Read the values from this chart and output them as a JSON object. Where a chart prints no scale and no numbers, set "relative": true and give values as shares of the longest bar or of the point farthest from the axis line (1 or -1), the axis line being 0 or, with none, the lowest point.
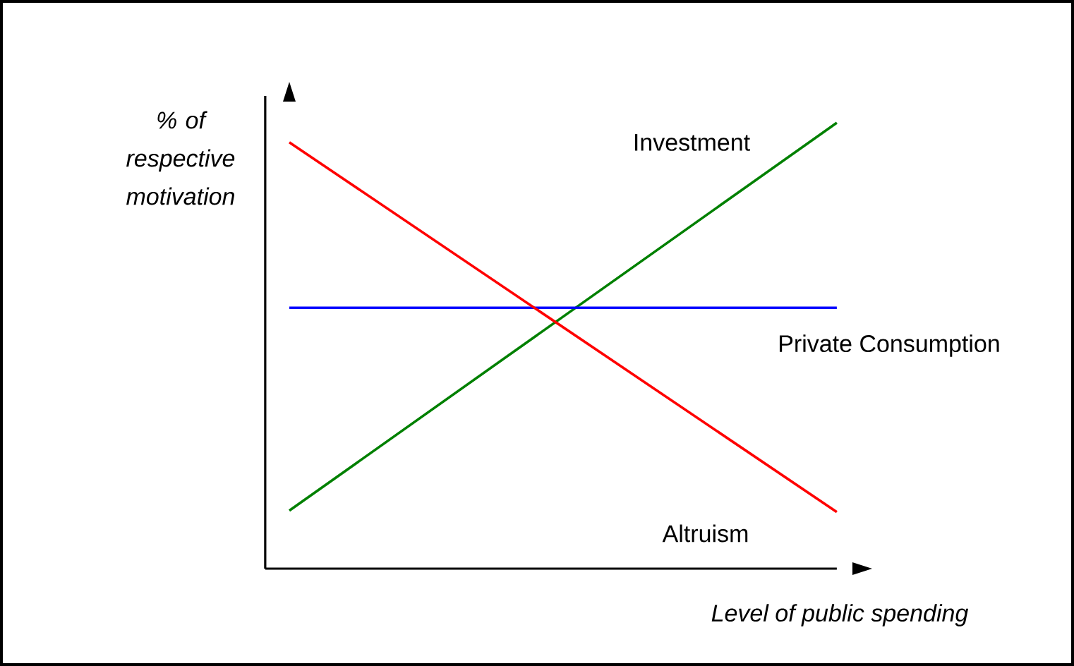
{
  "chart_data": {
    "type": "line",
    "relative": true,
    "categories": [
      null,
      null
    ],
    "xlabel": "Level of public spending",
    "ylabel": "% of respective motivation",
    "marker": "none",
    "legend": false,
    "series": [
      {
        "name": "Investment",
        "color": "#008000",
        "values": [
          0.13,
          1.0
        ]
      },
      {
        "name": "Private Consumption",
        "color": "#0000ff",
        "values": [
          0.585,
          0.585
        ]
      },
      {
        "name": "Altruism",
        "color": "#ff0000",
        "values": [
          0.956,
          0.127
        ]
      }
    ]
  }
}
